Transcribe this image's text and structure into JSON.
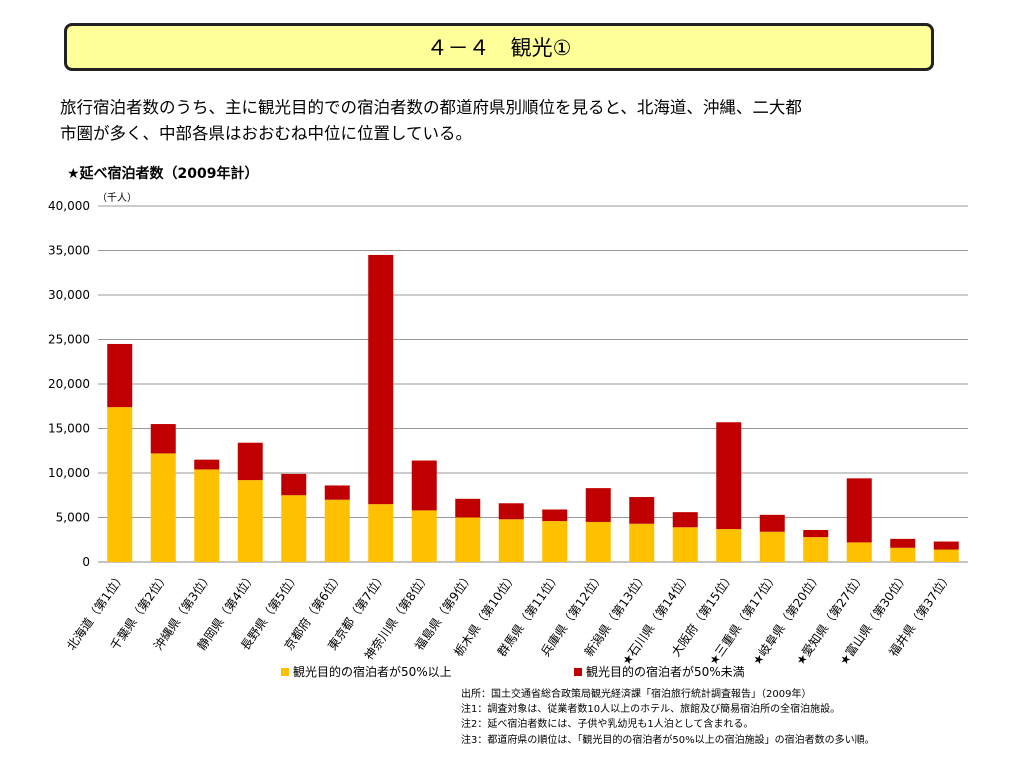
{
  "header": {
    "title": "４－４　観光①"
  },
  "intro": {
    "line1": "旅行宿泊者数のうち、主に観光目的での宿泊者数の都道府県別順位を見ると、北海道、沖縄、二大都",
    "line2": "市圏が多く、中部各県はおおむね中位に位置している。"
  },
  "chart_data": {
    "type": "bar",
    "stacked": true,
    "title": "★延べ宿泊者数（2009年計）",
    "unit_label": "（千人）",
    "ylim": [
      0,
      40000
    ],
    "yticks": [
      "0",
      "5,000",
      "10,000",
      "15,000",
      "20,000",
      "25,000",
      "30,000",
      "35,000",
      "40,000"
    ],
    "grid": true,
    "legend_position": "bottom",
    "categories": [
      "北海道（第1位）",
      "千葉県（第2位）",
      "沖縄県（第3位）",
      "静岡県（第4位）",
      "長野県（第5位）",
      "京都府（第6位）",
      "東京都（第7位）",
      "神奈川県（第8位）",
      "福島県（第9位）",
      "栃木県（第10位）",
      "群馬県（第11位）",
      "兵庫県（第12位）",
      "新潟県（第13位）",
      "★石川県（第14位）",
      "大阪府（第15位）",
      "★三重県（第17位）",
      "★岐阜県（第20位）",
      "★愛知県（第27位）",
      "★富山県（第30位）",
      "福井県（第37位）"
    ],
    "series": [
      {
        "name": "観光目的の宿泊者が50%以上",
        "color": "#ffc000",
        "values": [
          17400,
          12200,
          10400,
          9200,
          7500,
          7000,
          6500,
          5800,
          5000,
          4800,
          4600,
          4500,
          4300,
          3900,
          3700,
          3400,
          2800,
          2200,
          1600,
          1400
        ]
      },
      {
        "name": "観光目的の宿泊者が50%未満",
        "color": "#c00000",
        "values": [
          7100,
          3300,
          1100,
          4200,
          2400,
          1600,
          28000,
          5600,
          2100,
          1800,
          1300,
          3800,
          3000,
          1700,
          12000,
          1900,
          800,
          7200,
          1000,
          900
        ]
      }
    ]
  },
  "notes": [
    "出所：国土交通省総合政策局観光経済課「宿泊旅行統計調査報告」（2009年）",
    "注1：調査対象は、従業者数10人以上のホテル、旅館及び簡易宿泊所の全宿泊施設。",
    "注2：延べ宿泊者数には、子供や乳幼児も1人泊として含まれる。",
    "注3：都道府県の順位は、「観光目的の宿泊者が50%以上の宿泊施設」の宿泊者数の多い順。"
  ]
}
